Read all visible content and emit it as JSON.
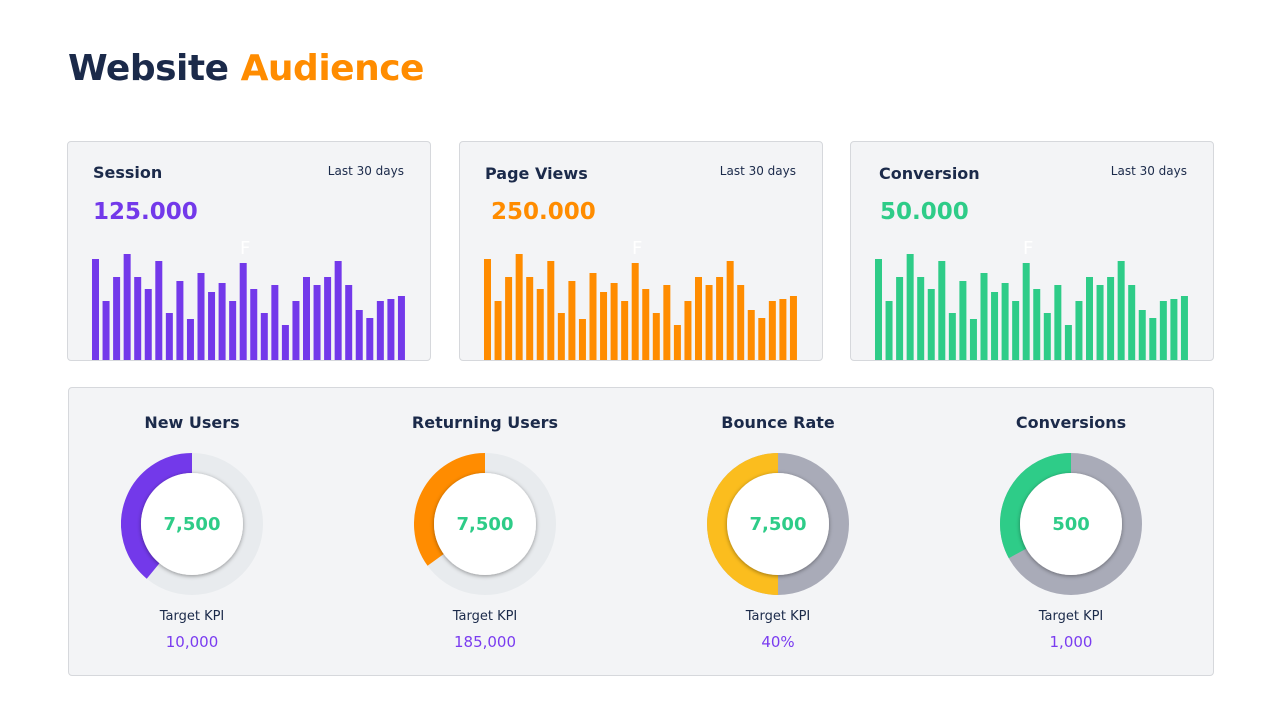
{
  "title": {
    "part1": "Website",
    "part2": "Audience"
  },
  "colors": {
    "navy": "#1b2a4a",
    "orange": "#ff8c00",
    "purple": "#7339ea",
    "green": "#2ecc88",
    "yellow": "#fbbd1e"
  },
  "cards": [
    {
      "name": "Session",
      "period": "Last 30 days",
      "value": "125.000",
      "color": "#7339ea",
      "artifact": "F"
    },
    {
      "name": "Page Views",
      "period": "Last 30 days",
      "value": "250.000",
      "color": "#ff8c00",
      "artifact": "F"
    },
    {
      "name": "Conversion",
      "period": "Last 30 days",
      "value": "50.000",
      "color": "#2ecc88",
      "artifact": "F"
    }
  ],
  "chart_data": {
    "type": "bar",
    "values": [
      101,
      59,
      83,
      106,
      83,
      71,
      99,
      47,
      79,
      41,
      87,
      68,
      77,
      59,
      97,
      71,
      47,
      75,
      35,
      59,
      83,
      75,
      83,
      99,
      75,
      50,
      42,
      59,
      61,
      64
    ]
  },
  "kpis": [
    {
      "title": "New Users",
      "value": "7,500",
      "target_label": "Target KPI",
      "target": "10,000",
      "fraction": 0.39,
      "color": "#7339ea",
      "track": "#e8ebee"
    },
    {
      "title": "Returning Users",
      "value": "7,500",
      "target_label": "Target KPI",
      "target": "185,000",
      "fraction": 0.35,
      "color": "#ff8c00",
      "track": "#e8ebee"
    },
    {
      "title": "Bounce Rate",
      "value": "7,500",
      "target_label": "Target KPI",
      "target": "40%",
      "fraction": 0.5,
      "color": "#fbbd1e",
      "track": "#a9abb8"
    },
    {
      "title": "Conversions",
      "value": "500",
      "target_label": "Target KPI",
      "target": "1,000",
      "fraction": 0.33,
      "color": "#2ecc88",
      "track": "#a9abb8"
    }
  ]
}
